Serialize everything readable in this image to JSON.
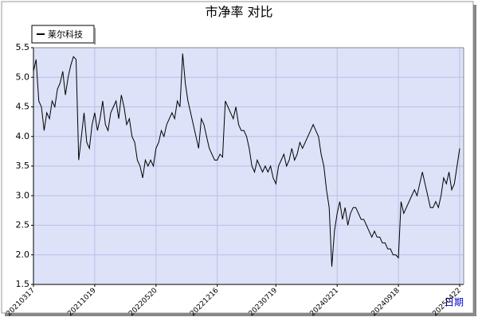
{
  "chart_data": {
    "type": "line",
    "title": "市净率 对比",
    "x_label": "日期",
    "categories": [
      "20210317",
      null,
      null,
      null,
      null,
      null,
      null,
      null,
      null,
      null,
      null,
      null,
      null,
      null,
      null,
      null,
      null,
      null,
      null,
      null,
      null,
      null,
      null,
      "20211019",
      null,
      null,
      null,
      null,
      null,
      null,
      null,
      null,
      null,
      null,
      null,
      null,
      null,
      null,
      null,
      null,
      null,
      null,
      null,
      null,
      null,
      null,
      "20220520",
      null,
      null,
      null,
      null,
      null,
      null,
      null,
      null,
      null,
      null,
      null,
      null,
      null,
      null,
      null,
      null,
      null,
      null,
      null,
      null,
      null,
      null,
      "20221216",
      null,
      null,
      null,
      null,
      null,
      null,
      null,
      null,
      null,
      null,
      null,
      null,
      null,
      null,
      null,
      null,
      null,
      null,
      null,
      null,
      null,
      "20230719",
      null,
      null,
      null,
      null,
      null,
      null,
      null,
      null,
      null,
      null,
      null,
      null,
      null,
      null,
      null,
      null,
      null,
      null,
      null,
      null,
      null,
      null,
      "20240221",
      null,
      null,
      null,
      null,
      null,
      null,
      null,
      null,
      null,
      null,
      null,
      null,
      null,
      null,
      null,
      null,
      null,
      null,
      null,
      null,
      null,
      null,
      "20240918",
      null,
      null,
      null,
      null,
      null,
      null,
      null,
      null,
      null,
      null,
      null,
      null,
      null,
      null,
      null,
      null,
      null,
      null,
      null,
      null,
      null,
      null,
      "20250422"
    ],
    "series": [
      {
        "name": "莱尔科技",
        "color": "#000000",
        "values": [
          5.1,
          5.3,
          4.6,
          4.5,
          4.1,
          4.4,
          4.3,
          4.6,
          4.5,
          4.8,
          4.9,
          5.1,
          4.7,
          5.0,
          5.2,
          5.35,
          5.3,
          3.6,
          4.0,
          4.4,
          3.9,
          3.8,
          4.2,
          4.4,
          4.1,
          4.3,
          4.6,
          4.2,
          4.1,
          4.4,
          4.5,
          4.6,
          4.3,
          4.7,
          4.5,
          4.2,
          4.3,
          4.0,
          3.9,
          3.6,
          3.5,
          3.3,
          3.6,
          3.5,
          3.6,
          3.5,
          3.8,
          3.9,
          4.1,
          4.0,
          4.2,
          4.3,
          4.4,
          4.3,
          4.6,
          4.5,
          5.4,
          4.9,
          4.6,
          4.4,
          4.2,
          4.0,
          3.8,
          4.3,
          4.2,
          4.0,
          3.8,
          3.7,
          3.6,
          3.6,
          3.7,
          3.65,
          4.6,
          4.5,
          4.4,
          4.3,
          4.5,
          4.2,
          4.1,
          4.1,
          4.0,
          3.8,
          3.5,
          3.4,
          3.6,
          3.5,
          3.4,
          3.5,
          3.4,
          3.5,
          3.3,
          3.2,
          3.5,
          3.6,
          3.7,
          3.5,
          3.6,
          3.8,
          3.6,
          3.7,
          3.9,
          3.8,
          3.9,
          4.0,
          4.1,
          4.2,
          4.1,
          4.0,
          3.7,
          3.5,
          3.1,
          2.8,
          1.8,
          2.4,
          2.7,
          2.9,
          2.6,
          2.8,
          2.5,
          2.7,
          2.8,
          2.8,
          2.7,
          2.6,
          2.6,
          2.5,
          2.4,
          2.3,
          2.4,
          2.3,
          2.3,
          2.2,
          2.2,
          2.1,
          2.1,
          2.0,
          2.0,
          1.95,
          2.9,
          2.7,
          2.8,
          2.9,
          3.0,
          3.1,
          3.0,
          3.2,
          3.4,
          3.2,
          3.0,
          2.8,
          2.8,
          2.9,
          2.8,
          3.0,
          3.3,
          3.2,
          3.4,
          3.1,
          3.2,
          3.5,
          3.8
        ]
      }
    ],
    "ylim": [
      1.5,
      5.5
    ],
    "yticks": [
      1.5,
      {
        "value": 2,
        "label": "2.0"
      },
      2.5,
      {
        "value": 3,
        "label": "3.0"
      },
      3.5,
      {
        "value": 4,
        "label": "4.0"
      },
      4.5,
      {
        "value": 5,
        "label": "5.0"
      },
      5.5
    ],
    "grid": true,
    "legend": "top-left"
  }
}
